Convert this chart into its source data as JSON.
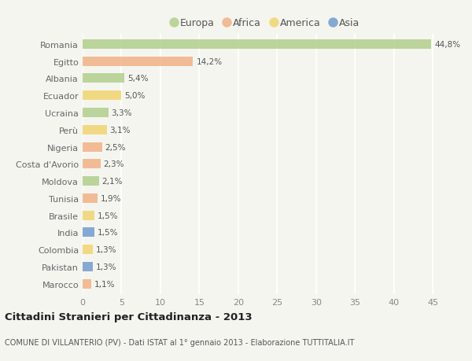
{
  "countries": [
    "Romania",
    "Egitto",
    "Albania",
    "Ecuador",
    "Ucraina",
    "Perù",
    "Nigeria",
    "Costa d'Avorio",
    "Moldova",
    "Tunisia",
    "Brasile",
    "India",
    "Colombia",
    "Pakistan",
    "Marocco"
  ],
  "values": [
    44.8,
    14.2,
    5.4,
    5.0,
    3.3,
    3.1,
    2.5,
    2.3,
    2.1,
    1.9,
    1.5,
    1.5,
    1.3,
    1.3,
    1.1
  ],
  "labels": [
    "44,8%",
    "14,2%",
    "5,4%",
    "5,0%",
    "3,3%",
    "3,1%",
    "2,5%",
    "2,3%",
    "2,1%",
    "1,9%",
    "1,5%",
    "1,5%",
    "1,3%",
    "1,3%",
    "1,1%"
  ],
  "continents": [
    "Europa",
    "Africa",
    "Europa",
    "America",
    "Europa",
    "America",
    "Africa",
    "Africa",
    "Europa",
    "Africa",
    "America",
    "Asia",
    "America",
    "Asia",
    "Africa"
  ],
  "colors": {
    "Europa": "#a8c97f",
    "Africa": "#f0a878",
    "America": "#f0d060",
    "Asia": "#6090c8"
  },
  "legend_order": [
    "Europa",
    "Africa",
    "America",
    "Asia"
  ],
  "title": "Cittadini Stranieri per Cittadinanza - 2013",
  "subtitle": "COMUNE DI VILLANTERIO (PV) - Dati ISTAT al 1° gennaio 2013 - Elaborazione TUTTITALIA.IT",
  "xlim": [
    0,
    47
  ],
  "xticks": [
    0,
    5,
    10,
    15,
    20,
    25,
    30,
    35,
    40,
    45
  ],
  "background_color": "#f5f5f0",
  "grid_color": "#ffffff",
  "bar_alpha": 0.75
}
